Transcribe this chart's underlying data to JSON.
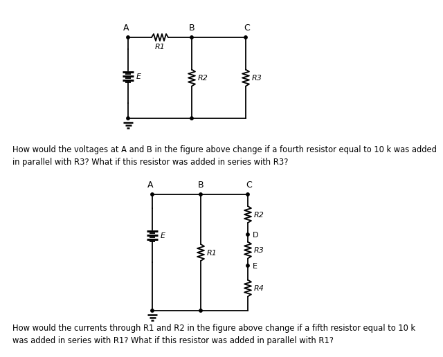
{
  "bg_color": "#ffffff",
  "text_color": "#000000",
  "line_color": "#000000",
  "fig_width": 5.57,
  "fig_height": 4.97,
  "question1": "How would the voltages at A and B in the figure above change if a fourth resistor equal to 10 k was added\nin parallel with R3? What if this resistor was added in series with R3?",
  "question2": "How would the currents through R1 and R2 in the figure above change if a fifth resistor equal to 10 k\nwas added in series with R1? What if this resistor was added in parallel with R1?"
}
